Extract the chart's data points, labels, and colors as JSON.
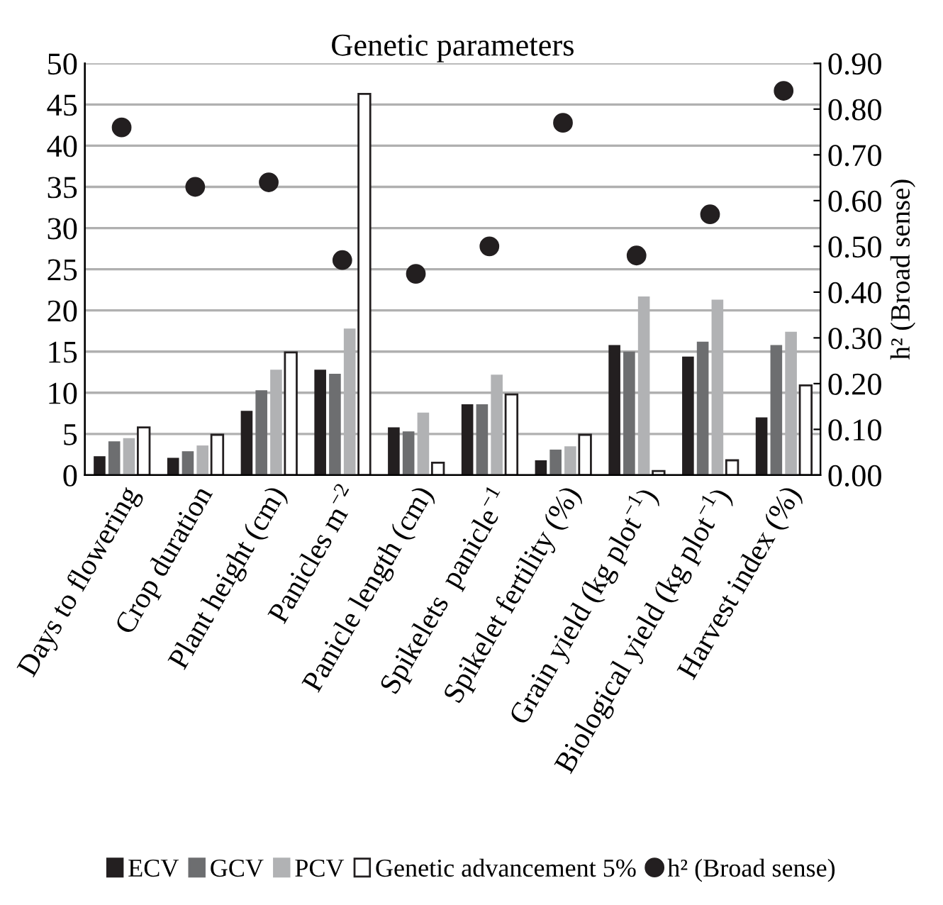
{
  "chart_data": {
    "type": "bar",
    "title": "Genetic parameters",
    "y2label": "h² (Broad sense)",
    "categories": [
      "Days to flowering",
      "Crop duration",
      "Plant height (cm)",
      "Panicles m$^{−2}$",
      "Panicle length (cm)",
      "Spikelets  panicle$^{−1}$",
      "Spikelet fertility (%)",
      "Grain yield (kg plot$^{−1}$)",
      "Biological yield (kg plot$^{−1}$)",
      "Harvest index (%)"
    ],
    "series": [
      {
        "name": "ECV",
        "color": "#231f20",
        "values": [
          2.3,
          2.1,
          7.8,
          12.8,
          5.8,
          8.6,
          1.8,
          15.8,
          14.4,
          7.0
        ]
      },
      {
        "name": "GCV",
        "color": "#6d6e70",
        "values": [
          4.1,
          2.9,
          10.3,
          12.3,
          5.3,
          8.6,
          3.1,
          15.0,
          16.2,
          15.8
        ]
      },
      {
        "name": "PCV",
        "color": "#b1b2b4",
        "values": [
          4.5,
          3.6,
          12.8,
          17.8,
          7.6,
          12.2,
          3.5,
          21.7,
          21.3,
          17.4
        ]
      },
      {
        "name": "Genetic advancement 5%",
        "color": "#ffffff",
        "values": [
          5.8,
          4.9,
          14.9,
          46.3,
          1.5,
          9.8,
          4.9,
          0.5,
          1.8,
          10.9
        ]
      },
      {
        "name": "h² (Broad sense)",
        "type": "scatter",
        "axis": "y2",
        "marker": "circle",
        "color": "#231f20",
        "values": [
          0.76,
          0.63,
          0.64,
          0.47,
          0.44,
          0.5,
          0.77,
          0.48,
          0.57,
          0.84
        ]
      }
    ],
    "ylim": [
      0,
      50
    ],
    "yticks": [
      0,
      5,
      10,
      15,
      20,
      25,
      30,
      35,
      40,
      45,
      50
    ],
    "y2lim": [
      0,
      0.9
    ],
    "y2ticks": [
      {
        "value": 0,
        "label": "0.00"
      },
      {
        "value": 0.1,
        "label": "0.10"
      },
      {
        "value": 0.2,
        "label": "0.20"
      },
      {
        "value": 0.3,
        "label": "0.30"
      },
      {
        "value": 0.4,
        "label": "0.40"
      },
      {
        "value": 0.5,
        "label": "0.50"
      },
      {
        "value": 0.6,
        "label": "0.60"
      },
      {
        "value": 0.7,
        "label": "0.70"
      },
      {
        "value": 0.8,
        "label": "0.80"
      },
      {
        "value": 0.9,
        "label": "0.90"
      }
    ],
    "grid": "y",
    "legend": "bottom"
  }
}
